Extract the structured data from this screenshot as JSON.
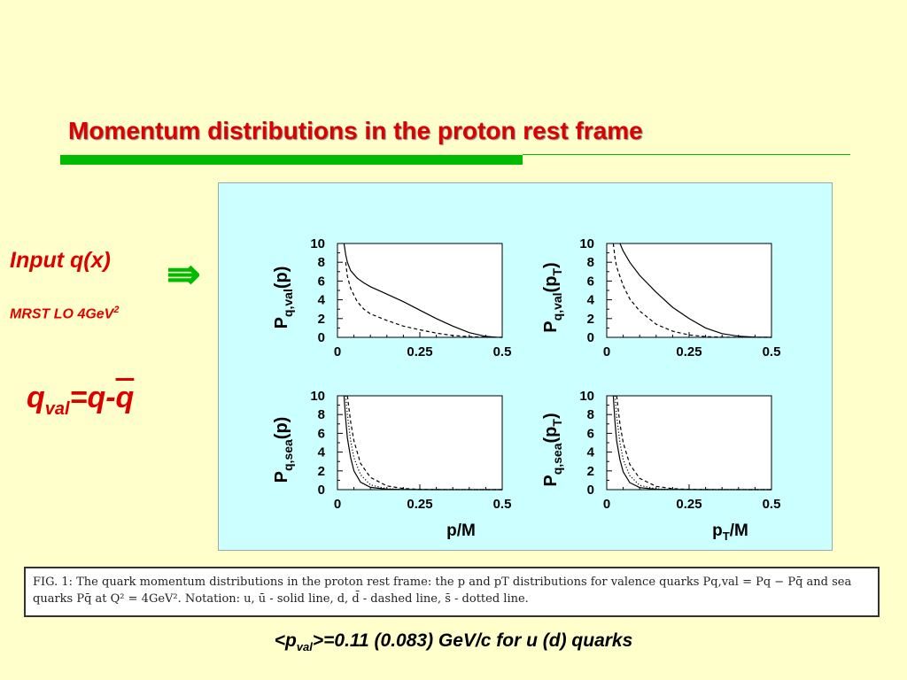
{
  "slide": {
    "title": "Momentum distributions in the proton rest frame",
    "input_label": "Input q(x)",
    "arrow_symbol": "⇛",
    "mrst_label": "MRST LO 4GeV",
    "mrst_sup": "2",
    "formula": {
      "q": "q",
      "sub": "val",
      "eq": "=q-",
      "qbar": "q"
    },
    "caption": "FIG. 1: The quark momentum distributions in the proton rest frame: the p and pT distributions for valence quarks Pq,val = Pq − Pq̄ and sea quarks Pq̄ at Q² = 4GeV². Notation: u, ū - solid line, d, d̄ - dashed line, s̄ - dotted line.",
    "bottom": {
      "pre": "<p",
      "sub": "val",
      "post": ">=0.11 (0.083) GeV/c    for u (d) quarks"
    }
  },
  "colors": {
    "title": "#dd0000",
    "accent_green": "#00bb00",
    "plot_bg": "#ccffff",
    "slide_bg": "#ffffcc"
  },
  "chart_data": [
    {
      "type": "line",
      "ylabel": {
        "main": "P",
        "sub": "q,val",
        "arg": "(p)"
      },
      "xlabel": "",
      "xlim": [
        0,
        0.5
      ],
      "ylim": [
        0,
        10
      ],
      "xticks": [
        "0",
        "0.25",
        "0.5"
      ],
      "yticks": [
        "0",
        "2",
        "4",
        "6",
        "8",
        "10"
      ],
      "series": [
        {
          "style": "solid",
          "x": [
            0.02,
            0.025,
            0.03,
            0.04,
            0.06,
            0.08,
            0.1,
            0.15,
            0.2,
            0.25,
            0.3,
            0.35,
            0.4,
            0.45,
            0.48,
            0.5
          ],
          "y": [
            10,
            8.8,
            8.0,
            7.1,
            6.3,
            5.8,
            5.4,
            4.6,
            3.8,
            2.9,
            2.0,
            1.2,
            0.5,
            0.1,
            0.02,
            0
          ]
        },
        {
          "style": "dashed",
          "x": [
            0.025,
            0.03,
            0.04,
            0.06,
            0.08,
            0.1,
            0.15,
            0.2,
            0.25,
            0.3,
            0.35,
            0.4,
            0.45,
            0.5
          ],
          "y": [
            8.0,
            6.5,
            5.2,
            3.8,
            3.0,
            2.5,
            1.8,
            1.2,
            0.8,
            0.45,
            0.2,
            0.08,
            0.02,
            0
          ]
        }
      ]
    },
    {
      "type": "line",
      "ylabel": {
        "main": "P",
        "sub": "q,val",
        "arg": "(p",
        "argsub": "T",
        "argclose": ")"
      },
      "xlabel": "",
      "xlim": [
        0,
        0.5
      ],
      "ylim": [
        0,
        10
      ],
      "xticks": [
        "0",
        "0.25",
        "0.5"
      ],
      "yticks": [
        "0",
        "2",
        "4",
        "6",
        "8",
        "10"
      ],
      "series": [
        {
          "style": "solid",
          "x": [
            0.04,
            0.05,
            0.07,
            0.1,
            0.15,
            0.2,
            0.25,
            0.3,
            0.35,
            0.4,
            0.45,
            0.5
          ],
          "y": [
            10,
            9.2,
            8.0,
            6.6,
            4.8,
            3.2,
            2.0,
            1.0,
            0.4,
            0.12,
            0.03,
            0
          ]
        },
        {
          "style": "dashed",
          "x": [
            0.02,
            0.025,
            0.03,
            0.05,
            0.07,
            0.1,
            0.15,
            0.2,
            0.25,
            0.3,
            0.35,
            0.4,
            0.5
          ],
          "y": [
            10,
            8.5,
            7.5,
            5.5,
            4.1,
            2.8,
            1.4,
            0.65,
            0.25,
            0.08,
            0.02,
            0.01,
            0
          ]
        }
      ]
    },
    {
      "type": "line",
      "ylabel": {
        "main": "P",
        "sub": "q,sea",
        "arg": "(p)"
      },
      "xlabel": "p/M",
      "xlim": [
        0,
        0.5
      ],
      "ylim": [
        0,
        10
      ],
      "xticks": [
        "0",
        "0.25",
        "0.5"
      ],
      "yticks": [
        "0",
        "2",
        "4",
        "6",
        "8",
        "10"
      ],
      "series": [
        {
          "style": "solid",
          "x": [
            0.02,
            0.025,
            0.03,
            0.04,
            0.05,
            0.07,
            0.1,
            0.15,
            0.2,
            0.3,
            0.5
          ],
          "y": [
            10,
            7.5,
            5.5,
            3.4,
            2.0,
            0.8,
            0.25,
            0.05,
            0.01,
            0,
            0
          ]
        },
        {
          "style": "dashed",
          "x": [
            0.03,
            0.04,
            0.05,
            0.07,
            0.1,
            0.15,
            0.2,
            0.25,
            0.3,
            0.5
          ],
          "y": [
            10,
            7.2,
            5.2,
            2.8,
            1.3,
            0.4,
            0.12,
            0.03,
            0.01,
            0
          ]
        },
        {
          "style": "dotted",
          "x": [
            0.025,
            0.03,
            0.04,
            0.05,
            0.07,
            0.1,
            0.15,
            0.2,
            0.3,
            0.5
          ],
          "y": [
            10,
            8.0,
            5.2,
            3.4,
            1.6,
            0.5,
            0.1,
            0.02,
            0,
            0
          ]
        }
      ]
    },
    {
      "type": "line",
      "ylabel": {
        "main": "P",
        "sub": "q,sea",
        "arg": "(p",
        "argsub": "T",
        "argclose": ")"
      },
      "xlabel": "p",
      "xlabel_sub": "T",
      "xlabel_post": "/M",
      "xlim": [
        0,
        0.5
      ],
      "ylim": [
        0,
        10
      ],
      "xticks": [
        "0",
        "0.25",
        "0.5"
      ],
      "yticks": [
        "0",
        "2",
        "4",
        "6",
        "8",
        "10"
      ],
      "series": [
        {
          "style": "solid",
          "x": [
            0.02,
            0.025,
            0.03,
            0.04,
            0.05,
            0.07,
            0.1,
            0.15,
            0.2,
            0.3,
            0.5
          ],
          "y": [
            10,
            7.2,
            5.2,
            3.2,
            1.9,
            0.75,
            0.22,
            0.04,
            0.01,
            0,
            0
          ]
        },
        {
          "style": "dashed",
          "x": [
            0.03,
            0.04,
            0.05,
            0.07,
            0.1,
            0.15,
            0.2,
            0.25,
            0.3,
            0.5
          ],
          "y": [
            10,
            7.0,
            5.0,
            2.7,
            1.2,
            0.35,
            0.1,
            0.03,
            0.01,
            0
          ]
        },
        {
          "style": "dotted",
          "x": [
            0.025,
            0.03,
            0.04,
            0.05,
            0.07,
            0.1,
            0.15,
            0.2,
            0.3,
            0.5
          ],
          "y": [
            10,
            7.8,
            5.0,
            3.2,
            1.5,
            0.45,
            0.08,
            0.02,
            0,
            0
          ]
        }
      ]
    }
  ]
}
